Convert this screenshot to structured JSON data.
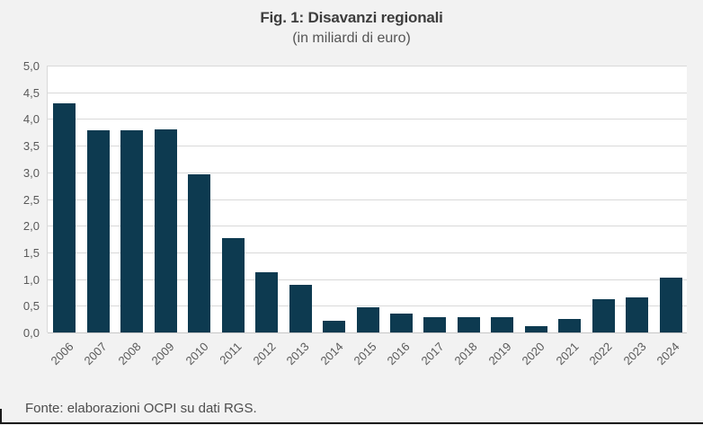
{
  "chart_data": {
    "type": "bar",
    "title": "Fig. 1: Disavanzi regionali",
    "subtitle": "(in miliardi di euro)",
    "categories": [
      "2006",
      "2007",
      "2008",
      "2009",
      "2010",
      "2011",
      "2012",
      "2013",
      "2014",
      "2015",
      "2016",
      "2017",
      "2018",
      "2019",
      "2020",
      "2021",
      "2022",
      "2023",
      "2024"
    ],
    "values": [
      4.3,
      3.79,
      3.79,
      3.81,
      2.96,
      1.76,
      1.12,
      0.9,
      0.22,
      0.47,
      0.35,
      0.29,
      0.29,
      0.29,
      0.12,
      0.25,
      0.63,
      0.66,
      1.02
    ],
    "ylim": [
      0,
      5
    ],
    "ytick_step": 0.5,
    "ytick_labels_top_to_bottom": [
      "5,0",
      "4,5",
      "4,0",
      "3,5",
      "3,0",
      "2,5",
      "2,0",
      "1,5",
      "1,0",
      "0,5",
      "0,0"
    ],
    "grid": true,
    "legend": "none",
    "bar_color": "#0d3a50",
    "source_note": "Fonte: elaborazioni OCPI su dati RGS."
  },
  "colors": {
    "page_background": "#f2f2f2",
    "plot_background": "#ffffff",
    "gridline": "#d9d9d9",
    "bar": "#0d3a50",
    "text": "#595959",
    "title_text": "#3d3d3d",
    "bottom_border": "#1a1a1a"
  }
}
